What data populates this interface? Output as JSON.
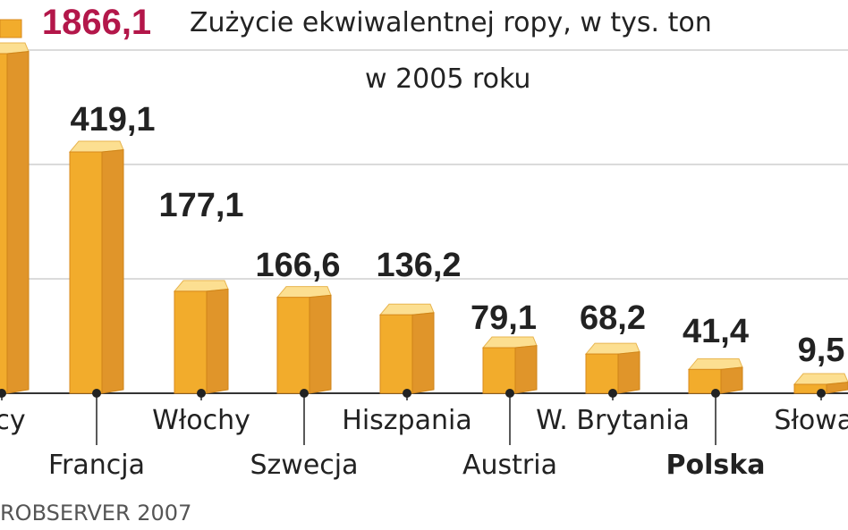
{
  "header": {
    "title": "Zużycie ekwiwalentnej ropy, w tys. ton",
    "subtitle": "w 2005 roku"
  },
  "source": "ROBSERVER 2007",
  "chart_data": {
    "type": "bar",
    "title": "Zużycie ekwiwalentnej ropy, w tys. ton",
    "subtitle": "w 2005 roku",
    "categories": [
      "ncy",
      "Francja",
      "Włochy",
      "Szwecja",
      "Hiszpania",
      "Austria",
      "W. Brytania",
      "Polska",
      "Słowac"
    ],
    "values": [
      1866.1,
      419.1,
      177.1,
      166.6,
      136.2,
      79.1,
      68.2,
      41.4,
      9.5
    ],
    "value_labels": [
      "1866,1",
      "419,1",
      "177,1",
      "166,6",
      "136,2",
      "79,1",
      "68,2",
      "41,4",
      "9,5"
    ],
    "highlight_category": "Polska",
    "grid": true,
    "colors": {
      "bar_front": "#f2ac2c",
      "bar_side": "#e0952a",
      "bar_top": "#fcdf91",
      "highlight_value": "#b3174a",
      "text": "#222222",
      "grid": "#cfcfcf"
    }
  }
}
